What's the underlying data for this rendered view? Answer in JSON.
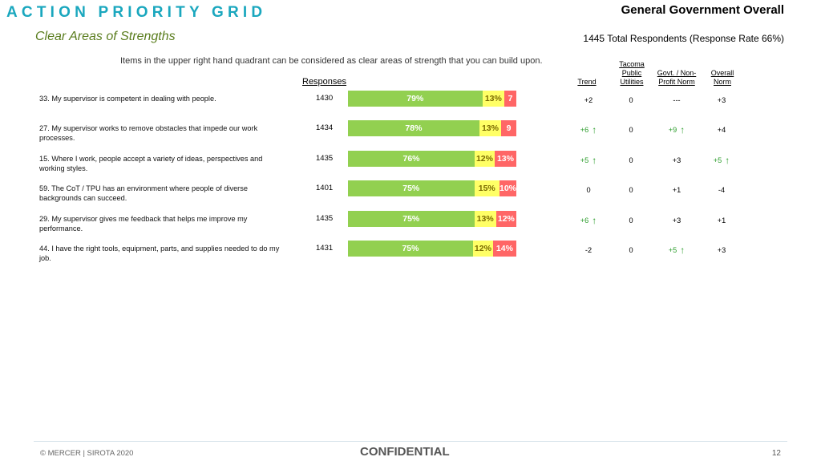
{
  "header": {
    "title": "ACTION PRIORITY GRID",
    "subtitle": "Clear Areas of Strengths",
    "right_title": "General Government Overall",
    "respondents": "1445 Total Respondents (Response Rate  66%)",
    "intro": "Items in the upper right hand quadrant can be considered as clear areas of strength that you can build upon."
  },
  "columns": {
    "responses": "Responses",
    "trend": "Trend",
    "tpu_line1": "Tacoma",
    "tpu_line2": "Public",
    "tpu_line3": "Utilities",
    "govt_line1": "Govt. / Non-",
    "govt_line2": "Profit Norm",
    "overall_line1": "Overall",
    "overall_line2": "Norm"
  },
  "colors": {
    "favorable": "#92d050",
    "neutral": "#ffff66",
    "unfavorable": "#ff6666",
    "up_arrow": "#2e9e2e"
  },
  "rows": [
    {
      "question": "33. My supervisor is competent in dealing with people.",
      "responses": "1430",
      "fav": 79,
      "neu": 13,
      "unf": 7,
      "fav_label": "79%",
      "neu_label": "13%",
      "unf_label": "7",
      "trend": "+2",
      "trend_up": false,
      "tpu": "0",
      "govt": "---",
      "govt_up": false,
      "overall": "+3",
      "overall_up": false
    },
    {
      "question": "27. My supervisor works to remove obstacles that impede our work processes.",
      "responses": "1434",
      "fav": 78,
      "neu": 13,
      "unf": 9,
      "fav_label": "78%",
      "neu_label": "13%",
      "unf_label": "9",
      "trend": "+6",
      "trend_up": true,
      "tpu": "0",
      "govt": "+9",
      "govt_up": true,
      "overall": "+4",
      "overall_up": false
    },
    {
      "question": "15. Where I work, people accept a variety of ideas, perspectives and working styles.",
      "responses": "1435",
      "fav": 76,
      "neu": 12,
      "unf": 13,
      "fav_label": "76%",
      "neu_label": "12%",
      "unf_label": "13%",
      "trend": "+5",
      "trend_up": true,
      "tpu": "0",
      "govt": "+3",
      "govt_up": false,
      "overall": "+5",
      "overall_up": true
    },
    {
      "question": "59. The CoT / TPU has an environment where people of diverse backgrounds can succeed.",
      "responses": "1401",
      "fav": 75,
      "neu": 15,
      "unf": 10,
      "fav_label": "75%",
      "neu_label": "15%",
      "unf_label": "10%",
      "trend": "0",
      "trend_up": false,
      "tpu": "0",
      "govt": "+1",
      "govt_up": false,
      "overall": "-4",
      "overall_up": false
    },
    {
      "question": "29. My supervisor gives me feedback that helps me improve my performance.",
      "responses": "1435",
      "fav": 75,
      "neu": 13,
      "unf": 12,
      "fav_label": "75%",
      "neu_label": "13%",
      "unf_label": "12%",
      "trend": "+6",
      "trend_up": true,
      "tpu": "0",
      "govt": "+3",
      "govt_up": false,
      "overall": "+1",
      "overall_up": false
    },
    {
      "question": "44. I have the right tools, equipment, parts, and supplies needed to do my job.",
      "responses": "1431",
      "fav": 75,
      "neu": 12,
      "unf": 14,
      "fav_label": "75%",
      "neu_label": "12%",
      "unf_label": "14%",
      "trend": "-2",
      "trend_up": false,
      "tpu": "0",
      "govt": "+5",
      "govt_up": true,
      "overall": "+3",
      "overall_up": false
    }
  ],
  "footer": {
    "copyright": "© MERCER | SIROTA 2020",
    "confidential": "CONFIDENTIAL",
    "page": "12"
  }
}
